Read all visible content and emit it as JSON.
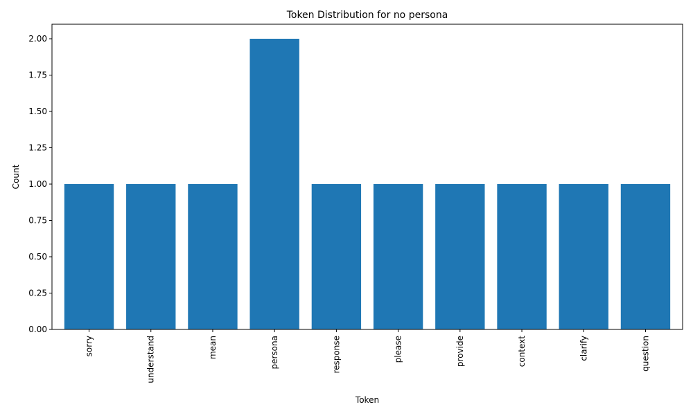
{
  "chart_data": {
    "type": "bar",
    "title": "Token Distribution for no persona",
    "xlabel": "Token",
    "ylabel": "Count",
    "categories": [
      "sorry",
      "understand",
      "mean",
      "persona",
      "response",
      "please",
      "provide",
      "context",
      "clarify",
      "question"
    ],
    "values": [
      1,
      1,
      1,
      2,
      1,
      1,
      1,
      1,
      1,
      1
    ],
    "ylim": [
      0,
      2.1
    ],
    "yticks": [
      0.0,
      0.25,
      0.5,
      0.75,
      1.0,
      1.25,
      1.5,
      1.75,
      2.0
    ],
    "ytick_labels": [
      "0.00",
      "0.25",
      "0.50",
      "0.75",
      "1.00",
      "1.25",
      "1.50",
      "1.75",
      "2.00"
    ],
    "grid": false,
    "legend": "none",
    "bar_color": "#1f77b4"
  }
}
